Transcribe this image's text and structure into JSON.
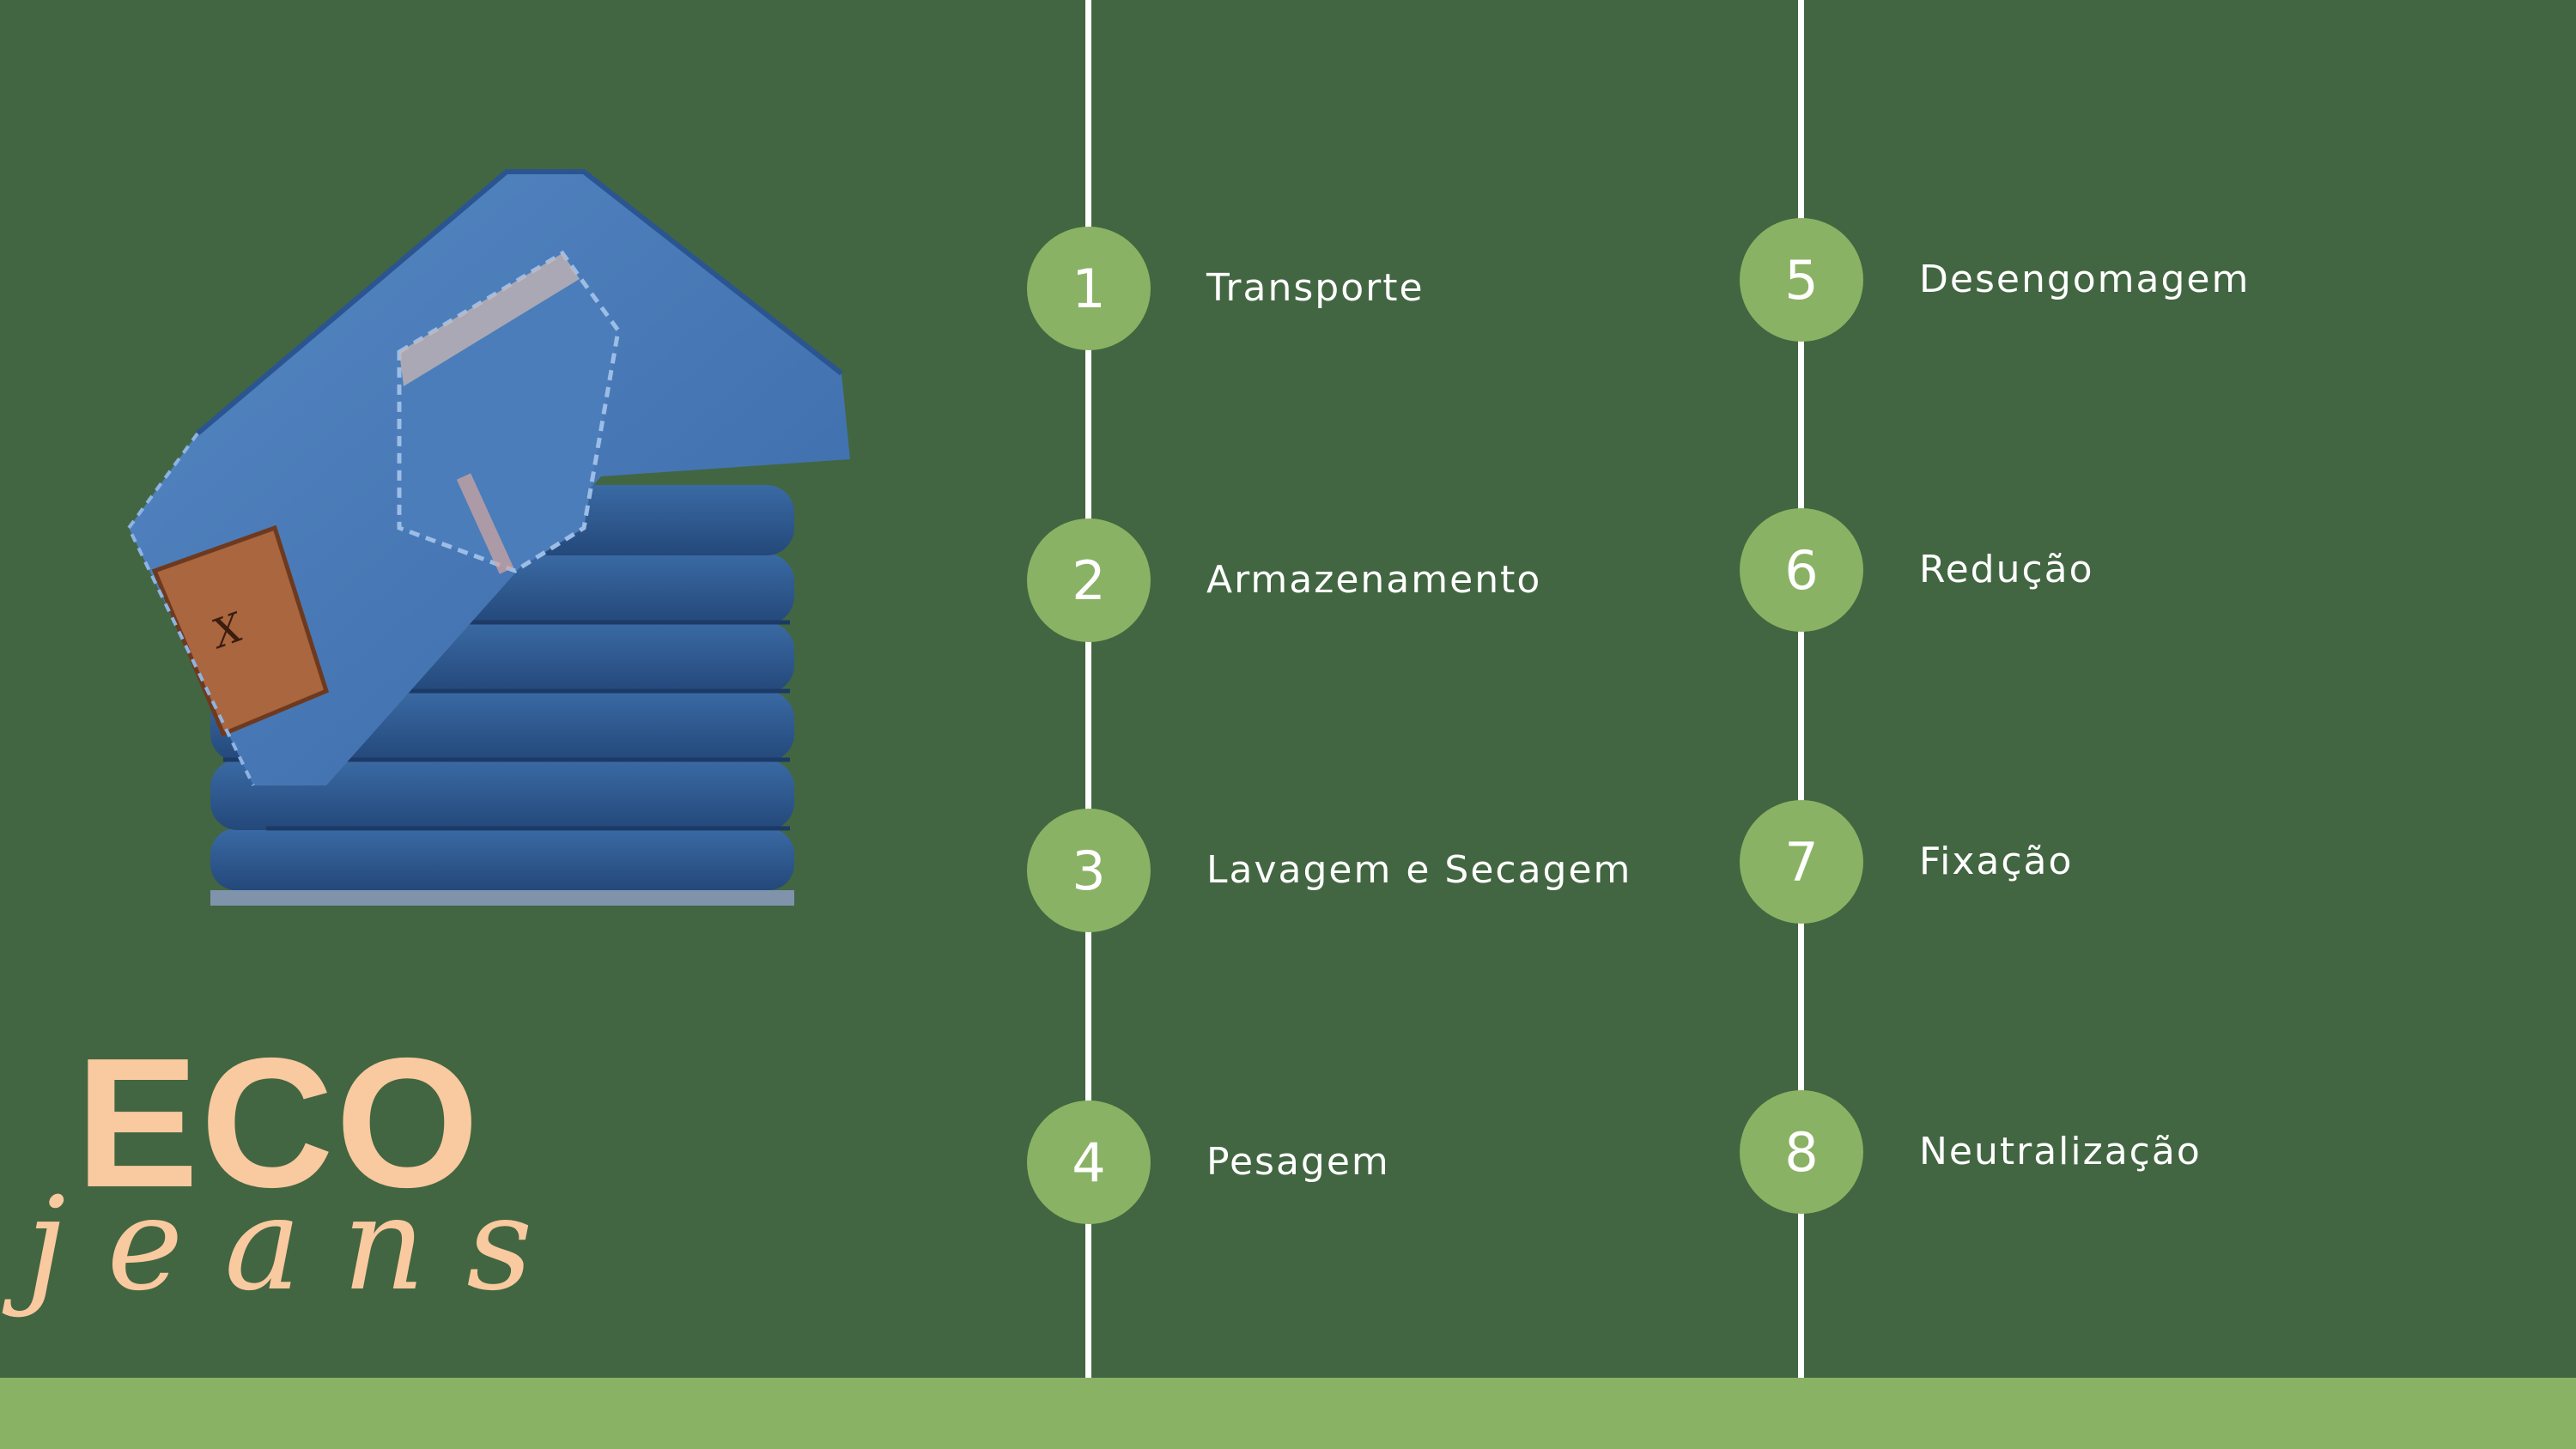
{
  "brand": {
    "eco": "ECO",
    "jeans": "jeans"
  },
  "colors": {
    "background": "#426641",
    "accent_green": "#8ab264",
    "line": "#ffffff",
    "text": "#ffffff",
    "brand_peach": "#f9c99f",
    "denim": "#2f5d96"
  },
  "illustration": {
    "subject": "stack-of-folded-jeans",
    "label_patch_text": "X"
  },
  "steps_left": [
    {
      "number": "1",
      "label": "Transporte"
    },
    {
      "number": "2",
      "label": "Armazenamento"
    },
    {
      "number": "3",
      "label": "Lavagem e Secagem"
    },
    {
      "number": "4",
      "label": "Pesagem"
    }
  ],
  "steps_right": [
    {
      "number": "5",
      "label": "Desengomagem"
    },
    {
      "number": "6",
      "label": "Redução"
    },
    {
      "number": "7",
      "label": "Fixação"
    },
    {
      "number": "8",
      "label": "Neutralização"
    }
  ]
}
